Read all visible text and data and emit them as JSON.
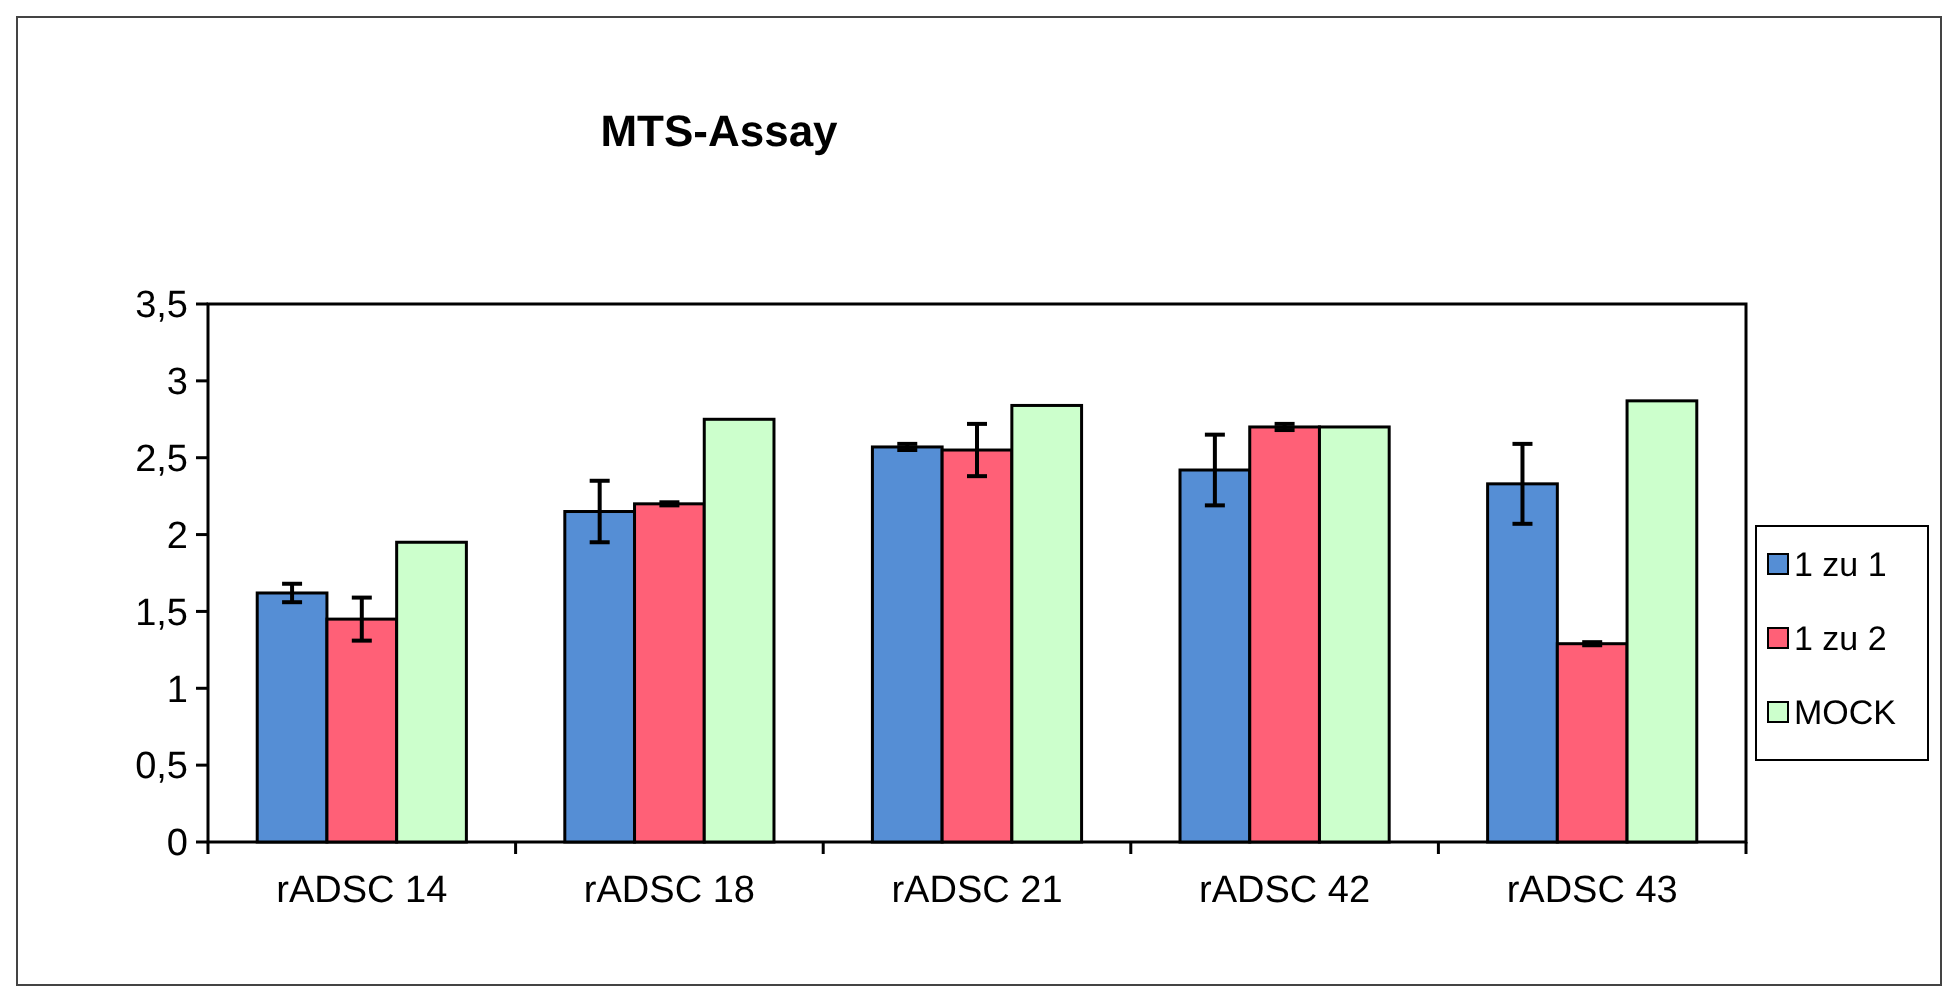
{
  "chart_data": {
    "type": "bar",
    "title": "MTS-Assay",
    "categories": [
      "rADSC 14",
      "rADSC 18",
      "rADSC 21",
      "rADSC 42",
      "rADSC 43"
    ],
    "series": [
      {
        "name": "1 zu 1",
        "color": "#558ed5",
        "values": [
          1.62,
          2.15,
          2.57,
          2.42,
          2.33
        ],
        "errors": [
          0.06,
          0.2,
          0.02,
          0.23,
          0.26
        ]
      },
      {
        "name": "1 zu 2",
        "color": "#ff6077",
        "values": [
          1.45,
          2.2,
          2.55,
          2.7,
          1.29
        ],
        "errors": [
          0.14,
          0.01,
          0.17,
          0.02,
          0.01
        ]
      },
      {
        "name": "MOCK",
        "color": "#ccffcc",
        "values": [
          1.95,
          2.75,
          2.84,
          2.7,
          2.87
        ]
      }
    ],
    "ylim": [
      0,
      3.5
    ],
    "yticks": [
      0,
      {
        "value": 0.5,
        "label": "0,5"
      },
      1,
      {
        "value": 1.5,
        "label": "1,5"
      },
      2,
      {
        "value": 2.5,
        "label": "2,5"
      },
      3,
      {
        "value": 3.5,
        "label": "3,5"
      }
    ],
    "grid": false,
    "legend": "right"
  }
}
